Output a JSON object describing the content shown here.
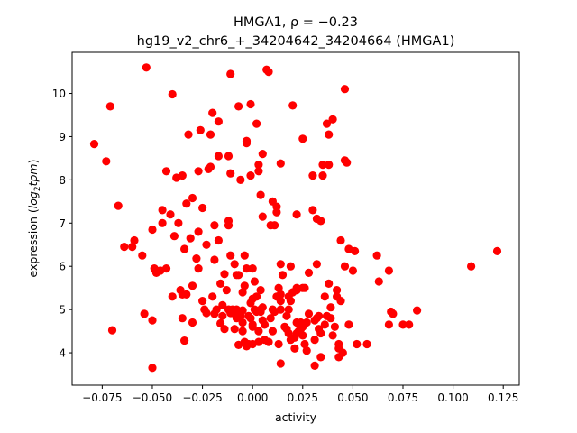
{
  "chart_data": {
    "type": "scatter",
    "title_line1": "HMGA1, ρ = −0.23",
    "title_line2": "hg19_v2_chr6_+_34204642_34204664 (HMGA1)",
    "xlabel": "activity",
    "ylabel_prefix": "expression (",
    "ylabel_italic": "log",
    "ylabel_sub": "2",
    "ylabel_italic2": "tpm",
    "ylabel_suffix": ")",
    "xlim": [
      -0.09,
      0.133
    ],
    "ylim": [
      3.25,
      10.95
    ],
    "x_ticks": [
      -0.075,
      -0.05,
      -0.025,
      0.0,
      0.025,
      0.05,
      0.075,
      0.1,
      0.125
    ],
    "x_tick_labels": [
      "−0.075",
      "−0.050",
      "−0.025",
      "0.000",
      "0.025",
      "0.050",
      "0.075",
      "0.100",
      "0.125"
    ],
    "y_ticks": [
      4,
      5,
      6,
      7,
      8,
      9,
      10
    ],
    "y_tick_labels": [
      "4",
      "5",
      "6",
      "7",
      "8",
      "9",
      "10"
    ],
    "marker_color": "#ff0000",
    "grid": false,
    "points": [
      [
        -0.079,
        8.83
      ],
      [
        -0.073,
        8.43
      ],
      [
        -0.071,
        9.7
      ],
      [
        -0.07,
        4.52
      ],
      [
        -0.067,
        7.4
      ],
      [
        -0.064,
        6.45
      ],
      [
        -0.06,
        6.45
      ],
      [
        -0.059,
        6.6
      ],
      [
        -0.055,
        6.25
      ],
      [
        -0.054,
        4.9
      ],
      [
        -0.053,
        10.6
      ],
      [
        -0.05,
        3.65
      ],
      [
        -0.05,
        4.75
      ],
      [
        -0.05,
        6.85
      ],
      [
        -0.049,
        5.95
      ],
      [
        -0.048,
        5.85
      ],
      [
        -0.046,
        5.9
      ],
      [
        -0.045,
        7.0
      ],
      [
        -0.045,
        7.3
      ],
      [
        -0.043,
        8.2
      ],
      [
        -0.043,
        5.95
      ],
      [
        -0.041,
        7.2
      ],
      [
        -0.04,
        9.98
      ],
      [
        -0.04,
        5.3
      ],
      [
        -0.039,
        6.7
      ],
      [
        -0.038,
        8.05
      ],
      [
        -0.037,
        7.0
      ],
      [
        -0.036,
        5.45
      ],
      [
        -0.035,
        5.35
      ],
      [
        -0.035,
        4.8
      ],
      [
        -0.035,
        8.1
      ],
      [
        -0.034,
        6.4
      ],
      [
        -0.034,
        4.28
      ],
      [
        -0.033,
        5.35
      ],
      [
        -0.033,
        7.45
      ],
      [
        -0.032,
        9.05
      ],
      [
        -0.031,
        6.65
      ],
      [
        -0.03,
        5.55
      ],
      [
        -0.03,
        4.7
      ],
      [
        -0.03,
        7.58
      ],
      [
        -0.028,
        6.18
      ],
      [
        -0.027,
        5.95
      ],
      [
        -0.027,
        6.8
      ],
      [
        -0.027,
        8.2
      ],
      [
        -0.026,
        9.15
      ],
      [
        -0.025,
        5.2
      ],
      [
        -0.025,
        7.35
      ],
      [
        -0.024,
        5.0
      ],
      [
        -0.023,
        6.5
      ],
      [
        -0.023,
        4.92
      ],
      [
        -0.022,
        8.25
      ],
      [
        -0.021,
        8.3
      ],
      [
        -0.021,
        9.05
      ],
      [
        -0.02,
        5.3
      ],
      [
        -0.02,
        9.55
      ],
      [
        -0.019,
        6.95
      ],
      [
        -0.019,
        4.9
      ],
      [
        -0.019,
        6.15
      ],
      [
        -0.018,
        5.0
      ],
      [
        -0.017,
        9.35
      ],
      [
        -0.017,
        8.55
      ],
      [
        -0.017,
        6.6
      ],
      [
        -0.016,
        4.68
      ],
      [
        -0.016,
        5.6
      ],
      [
        -0.015,
        4.85
      ],
      [
        -0.015,
        5.1
      ],
      [
        -0.014,
        5.82
      ],
      [
        -0.014,
        4.55
      ],
      [
        -0.013,
        5.45
      ],
      [
        -0.012,
        7.05
      ],
      [
        -0.012,
        6.95
      ],
      [
        -0.012,
        5.0
      ],
      [
        -0.012,
        8.55
      ],
      [
        -0.011,
        10.45
      ],
      [
        -0.011,
        8.15
      ],
      [
        -0.011,
        6.25
      ],
      [
        -0.011,
        4.92
      ],
      [
        -0.01,
        5.0
      ],
      [
        -0.009,
        4.55
      ],
      [
        -0.009,
        4.9
      ],
      [
        -0.009,
        6.05
      ],
      [
        -0.008,
        5.8
      ],
      [
        -0.008,
        4.8
      ],
      [
        -0.008,
        5.0
      ],
      [
        -0.007,
        9.7
      ],
      [
        -0.007,
        5.8
      ],
      [
        -0.007,
        4.18
      ],
      [
        -0.006,
        8.0
      ],
      [
        -0.006,
        4.85
      ],
      [
        -0.005,
        5.4
      ],
      [
        -0.005,
        4.7
      ],
      [
        -0.005,
        4.98
      ],
      [
        -0.005,
        4.5
      ],
      [
        -0.004,
        6.25
      ],
      [
        -0.004,
        5.55
      ],
      [
        -0.004,
        4.25
      ],
      [
        -0.003,
        4.15
      ],
      [
        -0.003,
        5.95
      ],
      [
        -0.003,
        8.9
      ],
      [
        -0.003,
        8.85
      ],
      [
        -0.002,
        4.85
      ],
      [
        -0.002,
        4.2
      ],
      [
        -0.001,
        4.8
      ],
      [
        -0.001,
        5.15
      ],
      [
        -0.001,
        8.1
      ],
      [
        -0.001,
        9.75
      ],
      [
        0.0,
        4.6
      ],
      [
        0.0,
        4.65
      ],
      [
        0.0,
        5.25
      ],
      [
        0.0,
        5.95
      ],
      [
        0.0,
        4.2
      ],
      [
        0.001,
        5.0
      ],
      [
        0.001,
        5.65
      ],
      [
        0.002,
        9.3
      ],
      [
        0.002,
        4.95
      ],
      [
        0.002,
        5.3
      ],
      [
        0.003,
        8.2
      ],
      [
        0.003,
        8.35
      ],
      [
        0.003,
        4.5
      ],
      [
        0.003,
        4.25
      ],
      [
        0.004,
        4.95
      ],
      [
        0.004,
        5.45
      ],
      [
        0.004,
        7.65
      ],
      [
        0.004,
        5.0
      ],
      [
        0.005,
        8.6
      ],
      [
        0.005,
        7.15
      ],
      [
        0.005,
        5.05
      ],
      [
        0.005,
        4.75
      ],
      [
        0.006,
        4.3
      ],
      [
        0.006,
        4.65
      ],
      [
        0.007,
        10.55
      ],
      [
        0.008,
        10.5
      ],
      [
        0.008,
        4.25
      ],
      [
        0.009,
        6.95
      ],
      [
        0.009,
        4.8
      ],
      [
        0.01,
        7.5
      ],
      [
        0.01,
        5.0
      ],
      [
        0.01,
        4.5
      ],
      [
        0.011,
        6.95
      ],
      [
        0.011,
        4.95
      ],
      [
        0.012,
        7.25
      ],
      [
        0.012,
        7.38
      ],
      [
        0.012,
        5.3
      ],
      [
        0.013,
        5.5
      ],
      [
        0.013,
        4.2
      ],
      [
        0.014,
        5.2
      ],
      [
        0.014,
        5.35
      ],
      [
        0.014,
        6.05
      ],
      [
        0.014,
        5.0
      ],
      [
        0.014,
        3.75
      ],
      [
        0.014,
        8.38
      ],
      [
        0.015,
        5.8
      ],
      [
        0.016,
        4.6
      ],
      [
        0.017,
        4.85
      ],
      [
        0.017,
        4.55
      ],
      [
        0.018,
        4.45
      ],
      [
        0.018,
        5.0
      ],
      [
        0.018,
        5.3
      ],
      [
        0.019,
        6.0
      ],
      [
        0.019,
        4.3
      ],
      [
        0.019,
        5.2
      ],
      [
        0.02,
        9.72
      ],
      [
        0.02,
        5.4
      ],
      [
        0.021,
        4.35
      ],
      [
        0.021,
        4.1
      ],
      [
        0.022,
        4.45
      ],
      [
        0.022,
        5.5
      ],
      [
        0.022,
        7.2
      ],
      [
        0.022,
        4.7
      ],
      [
        0.022,
        5.45
      ],
      [
        0.023,
        4.5
      ],
      [
        0.024,
        4.55
      ],
      [
        0.024,
        4.7
      ],
      [
        0.025,
        4.4
      ],
      [
        0.025,
        8.95
      ],
      [
        0.025,
        5.5
      ],
      [
        0.025,
        4.6
      ],
      [
        0.026,
        4.2
      ],
      [
        0.026,
        5.5
      ],
      [
        0.027,
        4.7
      ],
      [
        0.027,
        4.05
      ],
      [
        0.028,
        4.9
      ],
      [
        0.028,
        5.85
      ],
      [
        0.03,
        8.1
      ],
      [
        0.03,
        7.3
      ],
      [
        0.031,
        4.3
      ],
      [
        0.031,
        3.7
      ],
      [
        0.031,
        4.75
      ],
      [
        0.032,
        7.1
      ],
      [
        0.032,
        4.8
      ],
      [
        0.032,
        6.05
      ],
      [
        0.033,
        4.55
      ],
      [
        0.033,
        4.85
      ],
      [
        0.034,
        7.05
      ],
      [
        0.034,
        3.9
      ],
      [
        0.034,
        4.45
      ],
      [
        0.035,
        8.35
      ],
      [
        0.035,
        8.1
      ],
      [
        0.036,
        5.3
      ],
      [
        0.036,
        4.65
      ],
      [
        0.037,
        4.85
      ],
      [
        0.037,
        9.3
      ],
      [
        0.038,
        8.35
      ],
      [
        0.038,
        9.05
      ],
      [
        0.038,
        5.6
      ],
      [
        0.039,
        4.8
      ],
      [
        0.039,
        5.05
      ],
      [
        0.04,
        9.4
      ],
      [
        0.04,
        4.4
      ],
      [
        0.041,
        4.6
      ],
      [
        0.042,
        5.45
      ],
      [
        0.042,
        5.3
      ],
      [
        0.043,
        3.9
      ],
      [
        0.043,
        4.1
      ],
      [
        0.043,
        4.2
      ],
      [
        0.044,
        6.6
      ],
      [
        0.044,
        5.2
      ],
      [
        0.045,
        4.0
      ],
      [
        0.046,
        10.1
      ],
      [
        0.046,
        8.45
      ],
      [
        0.046,
        6.0
      ],
      [
        0.047,
        8.4
      ],
      [
        0.048,
        6.4
      ],
      [
        0.048,
        4.65
      ],
      [
        0.05,
        5.9
      ],
      [
        0.051,
        6.35
      ],
      [
        0.052,
        4.2
      ],
      [
        0.057,
        4.2
      ],
      [
        0.062,
        6.25
      ],
      [
        0.063,
        5.65
      ],
      [
        0.068,
        5.9
      ],
      [
        0.068,
        4.65
      ],
      [
        0.069,
        4.95
      ],
      [
        0.07,
        4.9
      ],
      [
        0.075,
        4.65
      ],
      [
        0.078,
        4.65
      ],
      [
        0.082,
        4.98
      ],
      [
        0.109,
        6.0
      ],
      [
        0.122,
        6.35
      ]
    ]
  }
}
